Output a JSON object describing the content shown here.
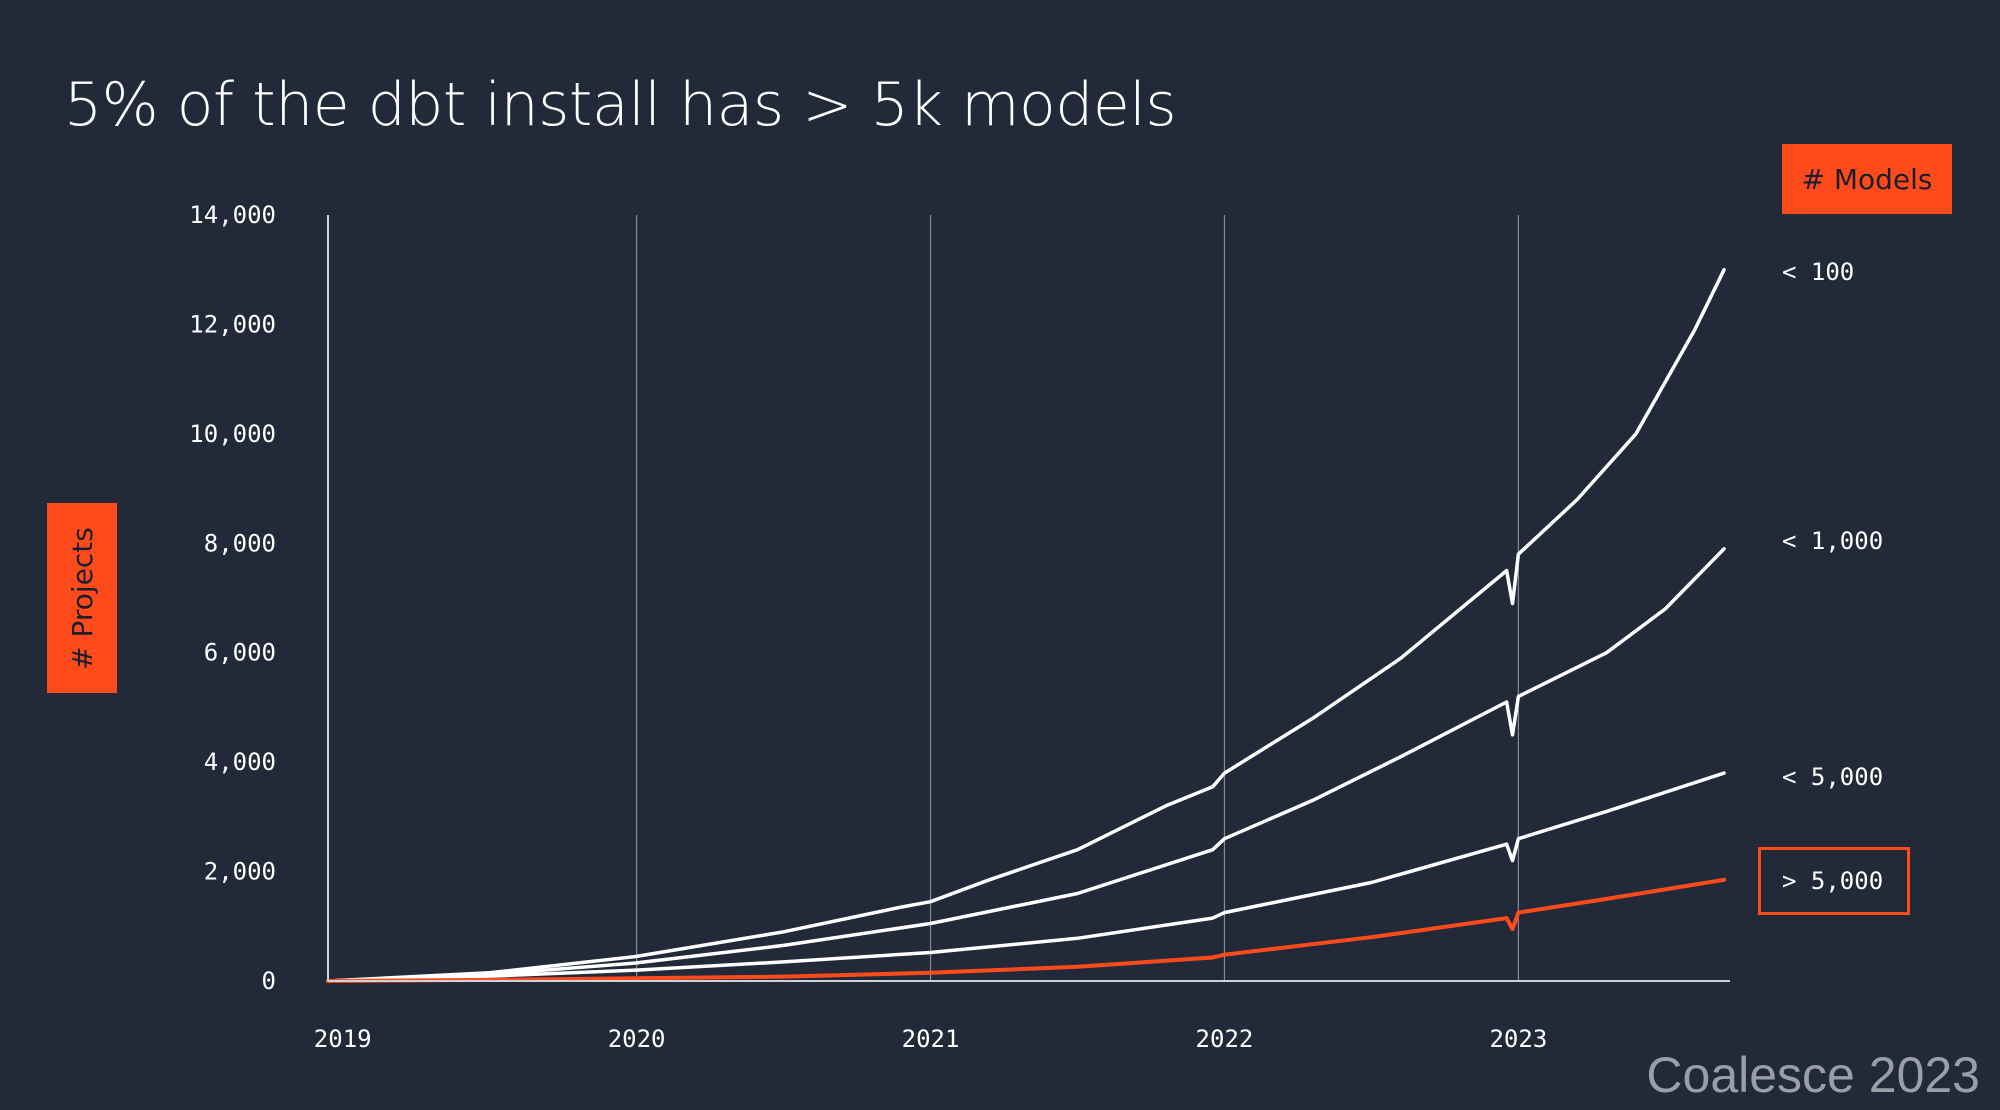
{
  "slide": {
    "title": "5% of the dbt install has > 5k models",
    "models_badge": "# Models",
    "projects_badge": "# Projects",
    "watermark": "Coalesce 2023"
  },
  "colors": {
    "background": "#222939",
    "accent": "#ff4a1c",
    "line": "#ffffff",
    "grid": "#a9adb6"
  },
  "chart_data": {
    "type": "line",
    "title": "5% of the dbt install has > 5k models",
    "xlabel": "",
    "ylabel": "# Projects",
    "legend_title": "# Models",
    "xlim": [
      2018.95,
      2023.72
    ],
    "ylim": [
      0,
      14000
    ],
    "yticks": [
      0,
      2000,
      4000,
      6000,
      8000,
      10000,
      12000,
      14000
    ],
    "ytick_labels": [
      "0",
      "2,000",
      "4,000",
      "6,000",
      "8,000",
      "10,000",
      "12,000",
      "14,000"
    ],
    "xticks": [
      2019,
      2020,
      2021,
      2022,
      2023
    ],
    "xtick_labels": [
      "2019",
      "2020",
      "2021",
      "2022",
      "2023"
    ],
    "grid": "vertical lines at year marks",
    "series": [
      {
        "name": "< 100",
        "color": "#ffffff",
        "x": [
          2018.95,
          2019.5,
          2020.0,
          2020.5,
          2020.9,
          2021.0,
          2021.2,
          2021.5,
          2021.8,
          2021.96,
          2022.0,
          2022.3,
          2022.6,
          2022.96,
          2022.98,
          2023.0,
          2023.2,
          2023.4,
          2023.6,
          2023.7
        ],
        "values": [
          0,
          150,
          450,
          900,
          1350,
          1450,
          1850,
          2400,
          3200,
          3550,
          3800,
          4800,
          5900,
          7500,
          6900,
          7800,
          8800,
          10000,
          11900,
          13000
        ]
      },
      {
        "name": "< 1,000",
        "color": "#ffffff",
        "x": [
          2018.95,
          2019.5,
          2020.0,
          2020.5,
          2021.0,
          2021.5,
          2021.96,
          2022.0,
          2022.3,
          2022.6,
          2022.96,
          2022.98,
          2023.0,
          2023.3,
          2023.5,
          2023.7
        ],
        "values": [
          0,
          120,
          330,
          650,
          1050,
          1600,
          2400,
          2600,
          3300,
          4100,
          5100,
          4500,
          5200,
          6000,
          6800,
          7900
        ]
      },
      {
        "name": "< 5,000",
        "color": "#ffffff",
        "x": [
          2018.95,
          2019.5,
          2020.0,
          2020.5,
          2021.0,
          2021.5,
          2021.96,
          2022.0,
          2022.5,
          2022.96,
          2022.98,
          2023.0,
          2023.3,
          2023.7
        ],
        "values": [
          0,
          90,
          200,
          350,
          520,
          780,
          1150,
          1250,
          1800,
          2500,
          2200,
          2600,
          3100,
          3800
        ]
      },
      {
        "name": "> 5,000",
        "color": "#ff4a1c",
        "x": [
          2018.95,
          2019.5,
          2020.0,
          2020.5,
          2021.0,
          2021.5,
          2021.96,
          2022.0,
          2022.5,
          2022.96,
          2022.98,
          2023.0,
          2023.3,
          2023.7
        ],
        "values": [
          0,
          20,
          50,
          80,
          150,
          260,
          430,
          480,
          800,
          1150,
          950,
          1250,
          1500,
          1850
        ]
      }
    ]
  }
}
